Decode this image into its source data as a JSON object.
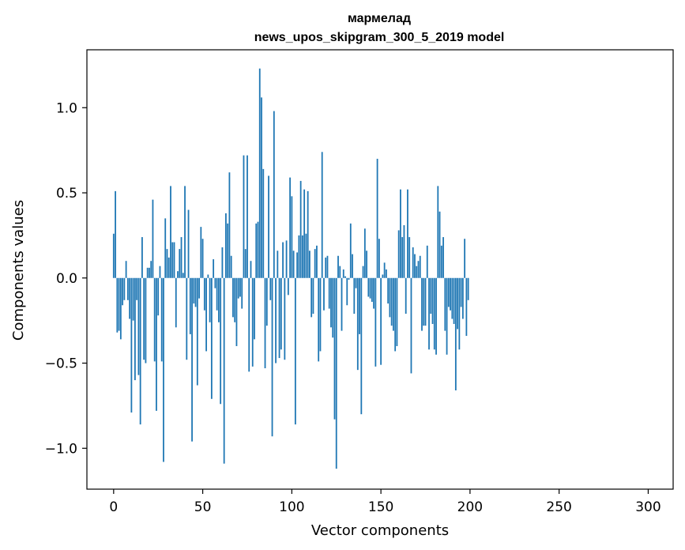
{
  "chart_data": {
    "type": "bar",
    "title_line1": "мармелад",
    "title_line2": "news_upos_skipgram_300_5_2019 model",
    "xlabel": "Vector components",
    "ylabel": "Components values",
    "xlim": [
      -15,
      314
    ],
    "ylim": [
      -1.24,
      1.34
    ],
    "xticks": [
      0,
      50,
      100,
      150,
      200,
      250,
      300
    ],
    "xtick_labels": [
      "0",
      "50",
      "100",
      "150",
      "200",
      "250",
      "300"
    ],
    "yticks": [
      -1.0,
      -0.5,
      0.0,
      0.5,
      1.0
    ],
    "ytick_labels": [
      "−1.0",
      "−0.5",
      "0.0",
      "0.5",
      "1.0"
    ],
    "bar_color": "#1f77b4",
    "grid": false,
    "values": [
      0.26,
      0.51,
      -0.32,
      -0.31,
      -0.36,
      -0.16,
      -0.13,
      0.1,
      -0.13,
      -0.24,
      -0.79,
      -0.25,
      -0.6,
      -0.13,
      -0.57,
      -0.86,
      0.24,
      -0.48,
      -0.5,
      0.06,
      0.06,
      0.1,
      0.46,
      -0.49,
      -0.78,
      -0.22,
      0.07,
      -0.49,
      -1.08,
      0.35,
      0.17,
      0.12,
      0.54,
      0.21,
      0.21,
      -0.29,
      0.04,
      0.17,
      0.24,
      0.03,
      0.54,
      -0.48,
      0.4,
      -0.33,
      -0.96,
      -0.15,
      -0.17,
      -0.63,
      -0.12,
      0.3,
      0.23,
      -0.19,
      -0.43,
      0.02,
      -0.26,
      -0.71,
      0.11,
      -0.06,
      -0.19,
      -0.26,
      -0.74,
      0.18,
      -1.09,
      0.38,
      0.32,
      0.62,
      0.13,
      -0.23,
      -0.26,
      -0.4,
      -0.12,
      -0.11,
      -0.18,
      0.72,
      0.17,
      0.72,
      -0.55,
      0.1,
      -0.52,
      -0.36,
      0.32,
      0.33,
      1.23,
      1.06,
      0.64,
      -0.53,
      -0.28,
      0.6,
      -0.13,
      -0.93,
      0.98,
      -0.5,
      0.16,
      -0.47,
      -0.42,
      0.21,
      -0.48,
      0.22,
      -0.1,
      0.59,
      0.48,
      0.16,
      -0.86,
      0.15,
      0.25,
      0.57,
      0.25,
      0.52,
      0.26,
      0.51,
      0.16,
      -0.23,
      -0.21,
      0.17,
      0.19,
      -0.49,
      -0.43,
      0.74,
      -0.19,
      0.12,
      0.13,
      -0.18,
      -0.29,
      -0.35,
      -0.83,
      -1.12,
      0.13,
      0.07,
      -0.31,
      0.05,
      0.01,
      -0.16,
      -0.01,
      0.32,
      0.14,
      -0.21,
      -0.06,
      -0.54,
      -0.33,
      -0.8,
      0.07,
      0.29,
      0.16,
      -0.11,
      -0.12,
      -0.14,
      -0.18,
      -0.52,
      0.7,
      0.23,
      -0.51,
      0.02,
      0.09,
      0.05,
      -0.15,
      -0.23,
      -0.28,
      -0.31,
      -0.43,
      -0.4,
      0.28,
      0.52,
      0.24,
      0.31,
      -0.21,
      0.52,
      0.24,
      -0.56,
      0.18,
      0.14,
      0.07,
      0.1,
      0.13,
      -0.31,
      -0.28,
      -0.28,
      0.19,
      -0.42,
      -0.21,
      -0.27,
      -0.42,
      -0.45,
      0.54,
      0.39,
      0.19,
      0.24,
      -0.31,
      -0.45,
      -0.17,
      -0.19,
      -0.24,
      -0.27,
      -0.66,
      -0.3,
      -0.42,
      -0.17,
      -0.24,
      0.23,
      -0.34,
      -0.13
    ]
  }
}
